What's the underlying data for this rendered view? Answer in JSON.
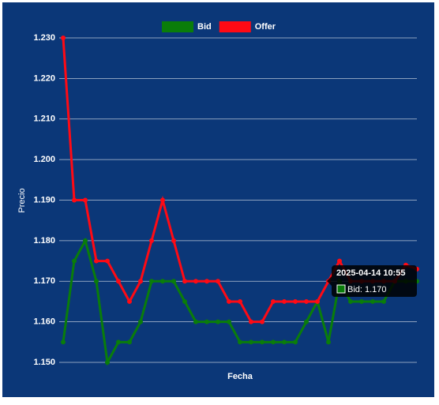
{
  "chart_data": {
    "type": "line",
    "x_label": "Fecha",
    "y_label": "Precio",
    "categories": [
      null,
      null,
      null,
      null,
      null,
      null,
      null,
      null,
      null,
      null,
      null,
      null,
      null,
      null,
      null,
      null,
      null,
      null,
      null,
      null,
      null,
      null,
      null,
      null,
      null,
      null,
      null,
      null,
      null,
      null,
      null,
      null,
      null
    ],
    "series": [
      {
        "name": "Bid",
        "color": "#0a7d0a",
        "values": [
          1.155,
          1.175,
          1.18,
          1.17,
          1.15,
          1.155,
          1.155,
          1.16,
          1.17,
          1.17,
          1.17,
          1.165,
          1.16,
          1.16,
          1.16,
          1.16,
          1.155,
          1.155,
          1.155,
          1.155,
          1.155,
          1.155,
          1.16,
          1.165,
          1.155,
          1.17,
          1.165,
          1.165,
          1.165,
          1.165,
          1.17,
          1.17,
          1.17
        ]
      },
      {
        "name": "Offer",
        "color": "#ff0a14",
        "values": [
          1.23,
          1.19,
          1.19,
          1.175,
          1.175,
          1.17,
          1.165,
          1.17,
          1.18,
          1.19,
          1.18,
          1.17,
          1.17,
          1.17,
          1.17,
          1.165,
          1.165,
          1.16,
          1.16,
          1.165,
          1.165,
          1.165,
          1.165,
          1.165,
          1.17,
          1.175,
          1.17,
          1.17,
          1.17,
          1.17,
          1.17,
          1.174,
          1.173
        ]
      }
    ],
    "ylim": [
      1.15,
      1.23
    ],
    "yticks": [
      {
        "value": 1.15,
        "label": "1.150"
      },
      {
        "value": 1.16,
        "label": "1.160"
      },
      {
        "value": 1.17,
        "label": "1.170"
      },
      {
        "value": 1.18,
        "label": "1.180"
      },
      {
        "value": 1.19,
        "label": "1.190"
      },
      {
        "value": 1.2,
        "label": "1.200"
      },
      {
        "value": 1.21,
        "label": "1.210"
      },
      {
        "value": 1.22,
        "label": "1.220"
      },
      {
        "value": 1.23,
        "label": "1.230"
      }
    ],
    "grid": true,
    "legend": "top",
    "tooltip": {
      "title": "2025-04-14 10:55",
      "label": "Bid: 1.170"
    }
  }
}
